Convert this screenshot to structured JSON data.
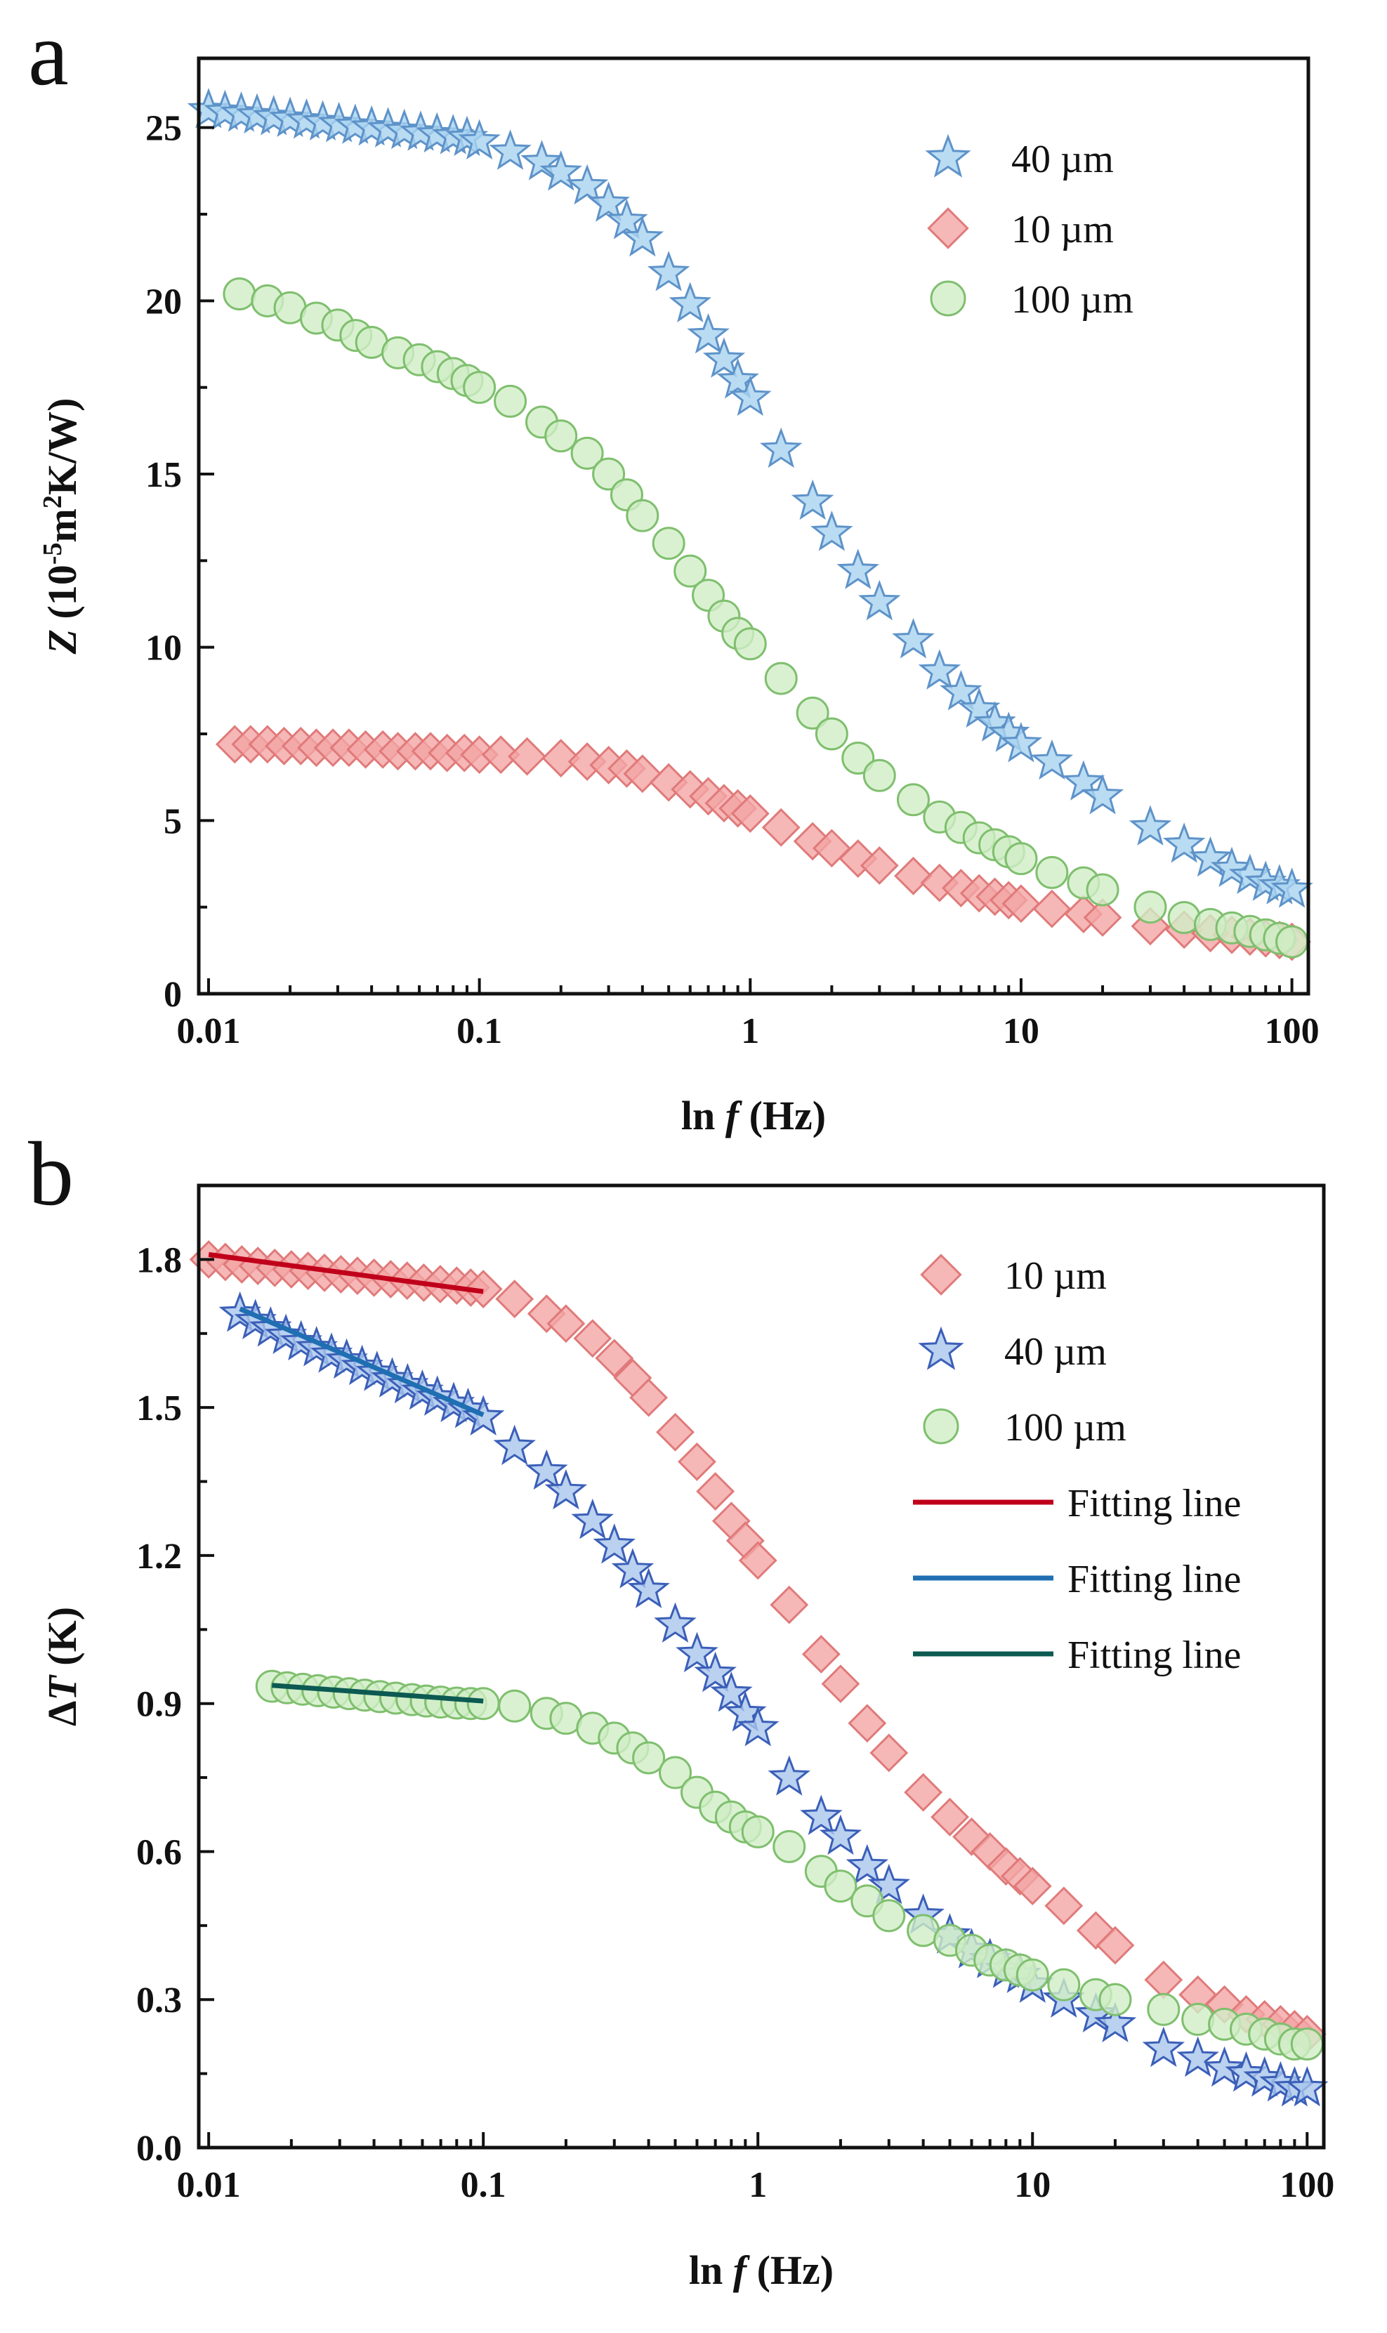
{
  "chart_data": [
    {
      "panel": "a",
      "type": "scatter",
      "xlabel": "ln f (Hz)",
      "xlabel_parts": {
        "prefix": "ln ",
        "var": "f",
        "suffix": " (Hz)"
      },
      "ylabel_parts": {
        "var": "Z",
        "text1": " (10",
        "sup1": "-5",
        "text2": "m",
        "sup2": "2",
        "text3": "K/W)"
      },
      "xscale": "log",
      "xlim": [
        0.0092,
        115
      ],
      "ylim": [
        0,
        27
      ],
      "xticks": [
        0.01,
        0.1,
        1,
        10,
        100
      ],
      "xtick_labels": [
        "0.01",
        "0.1",
        "1",
        "10",
        "100"
      ],
      "yticks": [
        0,
        5,
        10,
        15,
        20,
        25
      ],
      "ytick_labels": [
        "0",
        "5",
        "10",
        "15",
        "20",
        "25"
      ],
      "legend_position": "top-right",
      "series": [
        {
          "name": "40 µm",
          "marker": "star",
          "fill": "#a9d3f0",
          "stroke": "#5e93c9",
          "x": [
            0.01,
            0.0115,
            0.0132,
            0.0151,
            0.0174,
            0.02,
            0.023,
            0.0264,
            0.0303,
            0.0348,
            0.04,
            0.046,
            0.0528,
            0.0607,
            0.0697,
            0.08,
            0.09,
            0.1,
            0.13,
            0.17,
            0.2,
            0.25,
            0.3,
            0.35,
            0.4,
            0.5,
            0.6,
            0.7,
            0.8,
            0.9,
            1,
            1.3,
            1.7,
            2,
            2.5,
            3,
            4,
            5,
            6,
            7,
            8,
            9,
            10,
            13,
            17,
            20,
            30,
            40,
            50,
            60,
            70,
            80,
            90,
            100
          ],
          "y": [
            25.5,
            25.45,
            25.4,
            25.35,
            25.3,
            25.25,
            25.2,
            25.15,
            25.1,
            25.05,
            25.0,
            24.95,
            24.9,
            24.85,
            24.8,
            24.75,
            24.7,
            24.6,
            24.3,
            24.0,
            23.7,
            23.3,
            22.8,
            22.3,
            21.8,
            20.8,
            19.9,
            19.0,
            18.3,
            17.7,
            17.2,
            15.7,
            14.2,
            13.3,
            12.2,
            11.3,
            10.2,
            9.3,
            8.7,
            8.2,
            7.8,
            7.5,
            7.2,
            6.7,
            6.1,
            5.7,
            4.8,
            4.3,
            3.9,
            3.6,
            3.4,
            3.2,
            3.1,
            3.0
          ]
        },
        {
          "name": "10 µm",
          "marker": "diamond",
          "fill": "#f4a5a5",
          "stroke": "#e07a7a",
          "x": [
            0.0125,
            0.0143,
            0.0165,
            0.019,
            0.0219,
            0.025,
            0.0288,
            0.033,
            0.038,
            0.044,
            0.05,
            0.058,
            0.066,
            0.076,
            0.088,
            0.1,
            0.12,
            0.15,
            0.2,
            0.25,
            0.3,
            0.35,
            0.4,
            0.5,
            0.6,
            0.7,
            0.8,
            0.9,
            1,
            1.3,
            1.7,
            2,
            2.5,
            3,
            4,
            5,
            6,
            7,
            8,
            9,
            10,
            13,
            17,
            20,
            30,
            40,
            50,
            60,
            70,
            80,
            90,
            100
          ],
          "y": [
            7.2,
            7.2,
            7.2,
            7.15,
            7.15,
            7.1,
            7.1,
            7.1,
            7.05,
            7.05,
            7.0,
            7.0,
            7.0,
            6.95,
            6.95,
            6.9,
            6.9,
            6.85,
            6.8,
            6.7,
            6.6,
            6.5,
            6.35,
            6.1,
            5.9,
            5.7,
            5.5,
            5.35,
            5.2,
            4.8,
            4.4,
            4.2,
            3.9,
            3.7,
            3.4,
            3.2,
            3.05,
            2.9,
            2.8,
            2.7,
            2.6,
            2.45,
            2.3,
            2.2,
            1.95,
            1.85,
            1.75,
            1.7,
            1.65,
            1.6,
            1.55,
            1.5
          ]
        },
        {
          "name": "100 µm",
          "marker": "circle",
          "fill": "#cfeec6",
          "stroke": "#7fbf6e",
          "x": [
            0.013,
            0.0165,
            0.02,
            0.025,
            0.03,
            0.035,
            0.04,
            0.05,
            0.06,
            0.07,
            0.08,
            0.09,
            0.1,
            0.13,
            0.17,
            0.2,
            0.25,
            0.3,
            0.35,
            0.4,
            0.5,
            0.6,
            0.7,
            0.8,
            0.9,
            1,
            1.3,
            1.7,
            2,
            2.5,
            3,
            4,
            5,
            6,
            7,
            8,
            9,
            10,
            13,
            17,
            20,
            30,
            40,
            50,
            60,
            70,
            80,
            90,
            100
          ],
          "y": [
            20.2,
            20.0,
            19.8,
            19.5,
            19.3,
            19.0,
            18.8,
            18.5,
            18.3,
            18.1,
            17.9,
            17.7,
            17.5,
            17.1,
            16.5,
            16.1,
            15.6,
            15.0,
            14.4,
            13.8,
            13.0,
            12.2,
            11.5,
            10.9,
            10.4,
            10.1,
            9.1,
            8.1,
            7.5,
            6.8,
            6.3,
            5.6,
            5.1,
            4.8,
            4.5,
            4.3,
            4.1,
            3.9,
            3.5,
            3.2,
            3.0,
            2.5,
            2.2,
            2.0,
            1.9,
            1.8,
            1.7,
            1.6,
            1.5
          ]
        }
      ]
    },
    {
      "panel": "b",
      "type": "scatter",
      "xlabel": "ln f (Hz)",
      "xlabel_parts": {
        "prefix": "ln ",
        "var": "f",
        "suffix": " (Hz)"
      },
      "ylabel_parts": {
        "delta": "Δ",
        "var": "T",
        "suffix": " (K)"
      },
      "xscale": "log",
      "xlim": [
        0.0092,
        115
      ],
      "ylim": [
        0,
        1.95
      ],
      "xticks": [
        0.01,
        0.1,
        1,
        10,
        100
      ],
      "xtick_labels": [
        "0.01",
        "0.1",
        "1",
        "10",
        "100"
      ],
      "yticks": [
        0,
        0.3,
        0.6,
        0.9,
        1.2,
        1.5,
        1.8
      ],
      "ytick_labels": [
        "0.0",
        "0.3",
        "0.6",
        "0.9",
        "1.2",
        "1.5",
        "1.8"
      ],
      "legend_position": "top-right",
      "series": [
        {
          "name": "10 µm",
          "marker": "diamond",
          "fill": "#f4a5a5",
          "stroke": "#e07a7a",
          "x": [
            0.01,
            0.0115,
            0.0132,
            0.0151,
            0.0174,
            0.02,
            0.023,
            0.0264,
            0.0303,
            0.0348,
            0.04,
            0.046,
            0.0528,
            0.0607,
            0.0697,
            0.08,
            0.09,
            0.1,
            0.13,
            0.17,
            0.2,
            0.25,
            0.3,
            0.35,
            0.4,
            0.5,
            0.6,
            0.7,
            0.8,
            0.9,
            1,
            1.3,
            1.7,
            2,
            2.5,
            3,
            4,
            5,
            6,
            7,
            8,
            9,
            10,
            13,
            17,
            20,
            30,
            40,
            50,
            60,
            70,
            80,
            90,
            100
          ],
          "y": [
            1.8,
            1.795,
            1.79,
            1.787,
            1.783,
            1.78,
            1.777,
            1.773,
            1.77,
            1.767,
            1.763,
            1.76,
            1.757,
            1.753,
            1.75,
            1.747,
            1.743,
            1.74,
            1.72,
            1.69,
            1.67,
            1.64,
            1.6,
            1.56,
            1.52,
            1.45,
            1.39,
            1.33,
            1.27,
            1.23,
            1.19,
            1.1,
            1.0,
            0.94,
            0.86,
            0.8,
            0.72,
            0.67,
            0.63,
            0.6,
            0.57,
            0.55,
            0.53,
            0.49,
            0.44,
            0.41,
            0.34,
            0.31,
            0.29,
            0.27,
            0.26,
            0.25,
            0.24,
            0.23
          ]
        },
        {
          "name": "40 µm",
          "marker": "star",
          "fill": "#a9c6ec",
          "stroke": "#3b5fb8",
          "x": [
            0.013,
            0.0148,
            0.0168,
            0.0191,
            0.0217,
            0.0247,
            0.028,
            0.0318,
            0.0362,
            0.041,
            0.0466,
            0.053,
            0.06,
            0.068,
            0.078,
            0.088,
            0.1,
            0.13,
            0.17,
            0.2,
            0.25,
            0.3,
            0.35,
            0.4,
            0.5,
            0.6,
            0.7,
            0.8,
            0.9,
            1,
            1.3,
            1.7,
            2,
            2.5,
            3,
            4,
            5,
            6,
            7,
            8,
            9,
            10,
            13,
            17,
            20,
            30,
            40,
            50,
            60,
            70,
            80,
            90,
            100
          ],
          "y": [
            1.69,
            1.675,
            1.66,
            1.645,
            1.632,
            1.62,
            1.607,
            1.595,
            1.582,
            1.57,
            1.557,
            1.545,
            1.532,
            1.52,
            1.507,
            1.495,
            1.48,
            1.42,
            1.37,
            1.33,
            1.27,
            1.22,
            1.17,
            1.13,
            1.06,
            1.0,
            0.96,
            0.92,
            0.88,
            0.85,
            0.75,
            0.67,
            0.63,
            0.57,
            0.53,
            0.47,
            0.43,
            0.4,
            0.38,
            0.36,
            0.35,
            0.33,
            0.3,
            0.27,
            0.25,
            0.2,
            0.18,
            0.16,
            0.15,
            0.14,
            0.13,
            0.12,
            0.12
          ]
        },
        {
          "name": "100 µm",
          "marker": "circle",
          "fill": "#cfeec6",
          "stroke": "#7fbf6e",
          "x": [
            0.017,
            0.0193,
            0.022,
            0.025,
            0.0285,
            0.0325,
            0.037,
            0.042,
            0.048,
            0.055,
            0.062,
            0.07,
            0.08,
            0.09,
            0.1,
            0.13,
            0.17,
            0.2,
            0.25,
            0.3,
            0.35,
            0.4,
            0.5,
            0.6,
            0.7,
            0.8,
            0.9,
            1,
            1.3,
            1.7,
            2,
            2.5,
            3,
            4,
            5,
            6,
            7,
            8,
            9,
            10,
            13,
            17,
            20,
            30,
            40,
            50,
            60,
            70,
            80,
            90,
            100
          ],
          "y": [
            0.935,
            0.932,
            0.929,
            0.926,
            0.923,
            0.92,
            0.917,
            0.914,
            0.911,
            0.908,
            0.905,
            0.903,
            0.901,
            0.9,
            0.9,
            0.895,
            0.88,
            0.87,
            0.85,
            0.83,
            0.81,
            0.79,
            0.76,
            0.72,
            0.69,
            0.67,
            0.65,
            0.64,
            0.61,
            0.56,
            0.53,
            0.5,
            0.47,
            0.44,
            0.42,
            0.4,
            0.38,
            0.37,
            0.36,
            0.35,
            0.33,
            0.31,
            0.3,
            0.28,
            0.26,
            0.25,
            0.24,
            0.23,
            0.22,
            0.21,
            0.21
          ]
        }
      ],
      "fit_lines": [
        {
          "name": "Fitting line",
          "color": "#c0001a",
          "x": [
            0.01,
            0.1
          ],
          "y": [
            1.81,
            1.735
          ]
        },
        {
          "name": "Fitting line",
          "color": "#1f6fb2",
          "x": [
            0.013,
            0.1
          ],
          "y": [
            1.7,
            1.485
          ]
        },
        {
          "name": "Fitting line",
          "color": "#0c5a52",
          "x": [
            0.017,
            0.1
          ],
          "y": [
            0.937,
            0.905
          ]
        }
      ]
    }
  ]
}
